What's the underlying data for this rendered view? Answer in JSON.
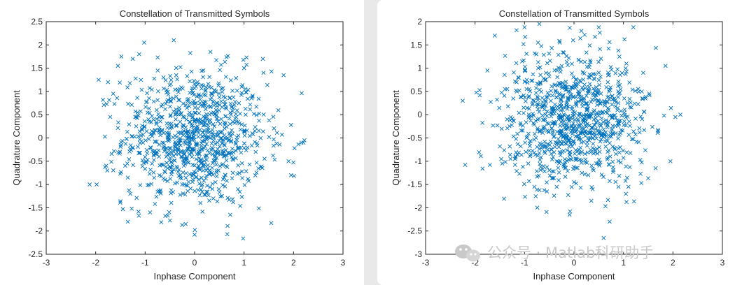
{
  "chart_data": [
    {
      "type": "scatter",
      "title": "Constellation of Transmitted Symbols",
      "xlabel": "Inphase Component",
      "ylabel": "Quadrature Component",
      "xlim": [
        -3,
        3
      ],
      "ylim": [
        -2.5,
        2.5
      ],
      "xticks": [
        "-3",
        "-2",
        "-1",
        "0",
        "1",
        "2",
        "3"
      ],
      "yticks": [
        "-2.5",
        "-2",
        "-1.5",
        "-1",
        "-0.5",
        "0",
        "0.5",
        "1",
        "1.5",
        "2",
        "2.5"
      ],
      "marker": "x",
      "color": "#0072BD",
      "point_count": 1000,
      "points": [
        [
          -2.12,
          -1.0
        ],
        [
          -1.98,
          -1.0
        ],
        [
          -1.94,
          1.25
        ],
        [
          -1.75,
          1.2
        ],
        [
          -1.62,
          0.73
        ],
        [
          -1.55,
          1.55
        ],
        [
          -1.48,
          1.75
        ],
        [
          -1.45,
          -1.53
        ],
        [
          -1.35,
          -1.8
        ],
        [
          -1.25,
          1.7
        ],
        [
          -1.12,
          1.8
        ],
        [
          -1.02,
          2.05
        ],
        [
          -0.42,
          2.1
        ],
        [
          0.32,
          1.85
        ],
        [
          1.0,
          1.5
        ],
        [
          1.05,
          1.73
        ],
        [
          1.38,
          1.7
        ],
        [
          1.8,
          1.35
        ],
        [
          2.2,
          -0.1
        ],
        [
          2.22,
          -0.05
        ],
        [
          1.95,
          -0.8
        ],
        [
          1.9,
          -0.5
        ],
        [
          1.55,
          -1.83
        ],
        [
          0.72,
          -1.65
        ],
        [
          0.0,
          -2.08
        ],
        [
          -0.18,
          -1.85
        ],
        [
          -0.25,
          -1.87
        ],
        [
          -0.9,
          -1.6
        ],
        [
          -1.3,
          -1.2
        ],
        [
          1.95,
          0.28
        ],
        [
          2.02,
          -0.22
        ],
        [
          -1.2,
          0.45
        ],
        [
          0.4,
          0.25
        ],
        [
          0.6,
          -0.4
        ],
        [
          -0.35,
          -0.65
        ]
      ]
    },
    {
      "type": "scatter",
      "title": "Constellation of Transmitted Symbols",
      "xlabel": "Inphase Component",
      "ylabel": "Quadrature Component",
      "xlim": [
        -3,
        3
      ],
      "ylim": [
        -3,
        2
      ],
      "xticks": [
        "-3",
        "-2",
        "-1",
        "0",
        "1",
        "2",
        "3"
      ],
      "yticks": [
        "-3",
        "-2.5",
        "-2",
        "-1.5",
        "-1",
        "-0.5",
        "0",
        "0.5",
        "1",
        "1.5",
        "2"
      ],
      "marker": "x",
      "color": "#0072BD",
      "point_count": 1000,
      "points": [
        [
          -2.25,
          0.3
        ],
        [
          -2.2,
          -1.08
        ],
        [
          -1.75,
          0.95
        ],
        [
          -1.6,
          1.7
        ],
        [
          -1.0,
          1.88
        ],
        [
          -0.7,
          1.95
        ],
        [
          0.15,
          1.8
        ],
        [
          0.5,
          1.88
        ],
        [
          1.2,
          1.88
        ],
        [
          1.85,
          1.05
        ],
        [
          2.15,
          0.0
        ],
        [
          2.05,
          -0.05
        ],
        [
          1.95,
          -1.0
        ],
        [
          1.65,
          -1.15
        ],
        [
          1.05,
          -1.7
        ],
        [
          0.72,
          -2.3
        ],
        [
          0.6,
          -2.65
        ],
        [
          0.35,
          -1.85
        ],
        [
          -0.8,
          -1.55
        ],
        [
          -1.45,
          -1.05
        ],
        [
          -1.7,
          -1.08
        ],
        [
          -0.35,
          -1.55
        ],
        [
          0.9,
          -1.55
        ],
        [
          1.4,
          0.9
        ],
        [
          -1.35,
          0.55
        ],
        [
          0.25,
          0.25
        ],
        [
          0.55,
          -0.45
        ],
        [
          -0.45,
          -0.75
        ]
      ]
    }
  ],
  "watermark": {
    "text": "公众号 · Matlab科研助手",
    "icon": "wechat-icon"
  }
}
